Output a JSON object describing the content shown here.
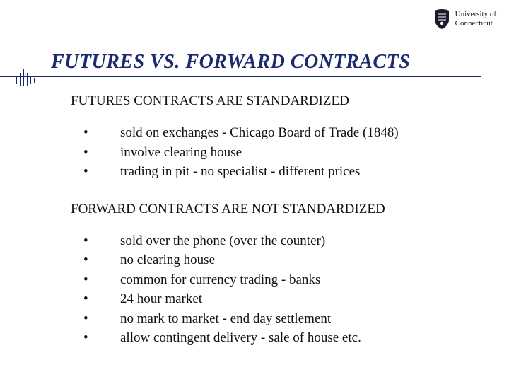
{
  "colors": {
    "title": "#1a2a6c",
    "rule": "#1a2a6c",
    "body_text": "#111111",
    "background": "#ffffff",
    "logo_text": "#1a1a2e"
  },
  "typography": {
    "title_fontsize": 28,
    "title_style": "italic bold",
    "heading_fontsize": 19,
    "body_fontsize": 19,
    "font_family": "Times New Roman"
  },
  "logo": {
    "line1": "University of",
    "line2": "Connecticut"
  },
  "title": "FUTURES VS. FORWARD CONTRACTS",
  "sections": [
    {
      "heading": "FUTURES CONTRACTS ARE STANDARDIZED",
      "bullets": [
        "sold on exchanges - Chicago Board of Trade (1848)",
        "involve clearing house",
        "trading in pit - no specialist - different prices"
      ]
    },
    {
      "heading": "FORWARD CONTRACTS ARE NOT STANDARDIZED",
      "bullets": [
        "sold over the phone (over the counter)",
        "no clearing house",
        "common for currency trading - banks",
        "24 hour market",
        "no mark to market - end day settlement",
        "allow contingent delivery - sale of house etc."
      ]
    }
  ],
  "ticks": {
    "heights": [
      8,
      12,
      18,
      24,
      18,
      12,
      8
    ]
  }
}
